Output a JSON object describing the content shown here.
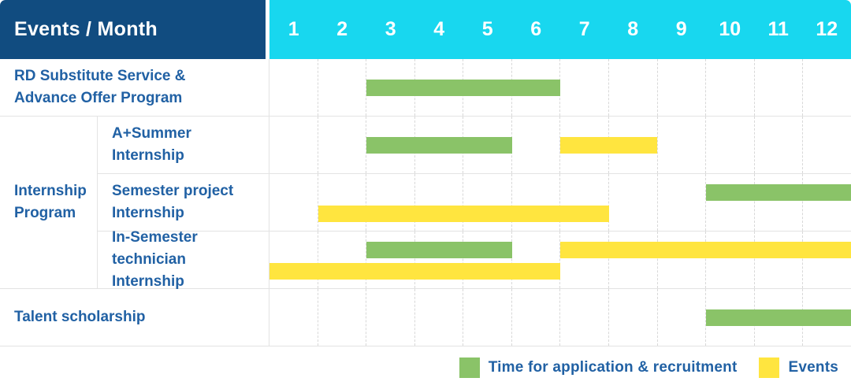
{
  "header": {
    "title": "Events / Month",
    "months": [
      "1",
      "2",
      "3",
      "4",
      "5",
      "6",
      "7",
      "8",
      "9",
      "10",
      "11",
      "12"
    ]
  },
  "colors": {
    "header_label_bg": "#114c80",
    "months_header_bg": "#18d7ef",
    "application_green": "#8ac368",
    "events_yellow": "#ffe53f",
    "label_text_blue": "#2161a4",
    "row_border": "#e3e3e3",
    "month_gridline": "#d8d8d8"
  },
  "legend": {
    "items": [
      {
        "series": "application",
        "label": "Time for application & recruitment"
      },
      {
        "series": "events",
        "label": "Events"
      }
    ]
  },
  "chart_data": {
    "type": "bar",
    "variant": "gantt-timeline",
    "title": "Events / Month",
    "xlabel": "Month",
    "x_ticks": [
      "1",
      "2",
      "3",
      "4",
      "5",
      "6",
      "7",
      "8",
      "9",
      "10",
      "11",
      "12"
    ],
    "x_range": [
      1,
      12
    ],
    "grid": "vertical-dashed",
    "legend_position": "bottom-right",
    "series_colors": {
      "application": "#8ac368",
      "events": "#ffe53f"
    },
    "series_labels": {
      "application": "Time for application & recruitment",
      "events": "Events"
    },
    "rows": [
      {
        "group": null,
        "label": "RD Substitute Service & Advance Offer Program",
        "label_lines": [
          "RD Substitute Service &",
          "Advance Offer Program"
        ],
        "lines": 1,
        "bars": [
          {
            "series": "application",
            "start_month": 3,
            "end_month": 6,
            "line": 0
          }
        ]
      },
      {
        "group": "Internship Program",
        "label": "A+Summer Internship",
        "label_lines": [
          "A+Summer",
          "Internship"
        ],
        "lines": 1,
        "bars": [
          {
            "series": "application",
            "start_month": 3,
            "end_month": 5,
            "line": 0
          },
          {
            "series": "events",
            "start_month": 7,
            "end_month": 8,
            "line": 0
          }
        ]
      },
      {
        "group": "Internship Program",
        "label": "Semester project Internship",
        "label_lines": [
          "Semester project",
          "Internship"
        ],
        "lines": 2,
        "bars": [
          {
            "series": "application",
            "start_month": 10,
            "end_month": 12,
            "line": 0
          },
          {
            "series": "events",
            "start_month": 2,
            "end_month": 7,
            "line": 1
          }
        ]
      },
      {
        "group": "Internship Program",
        "label": "In-Semester technician Internship",
        "label_lines": [
          "In-Semester",
          "technician Internship"
        ],
        "lines": 2,
        "bars": [
          {
            "series": "application",
            "start_month": 3,
            "end_month": 5,
            "line": 0
          },
          {
            "series": "events",
            "start_month": 7,
            "end_month": 12,
            "line": 0
          },
          {
            "series": "events",
            "start_month": 1,
            "end_month": 6,
            "line": 1
          }
        ]
      },
      {
        "group": null,
        "label": "Talent scholarship",
        "label_lines": [
          "Talent scholarship"
        ],
        "lines": 1,
        "bars": [
          {
            "series": "application",
            "start_month": 10,
            "end_month": 12,
            "line": 0
          }
        ]
      }
    ],
    "groups": [
      {
        "label": "Internship Program",
        "label_lines": [
          "Internship",
          "Program"
        ]
      }
    ]
  }
}
